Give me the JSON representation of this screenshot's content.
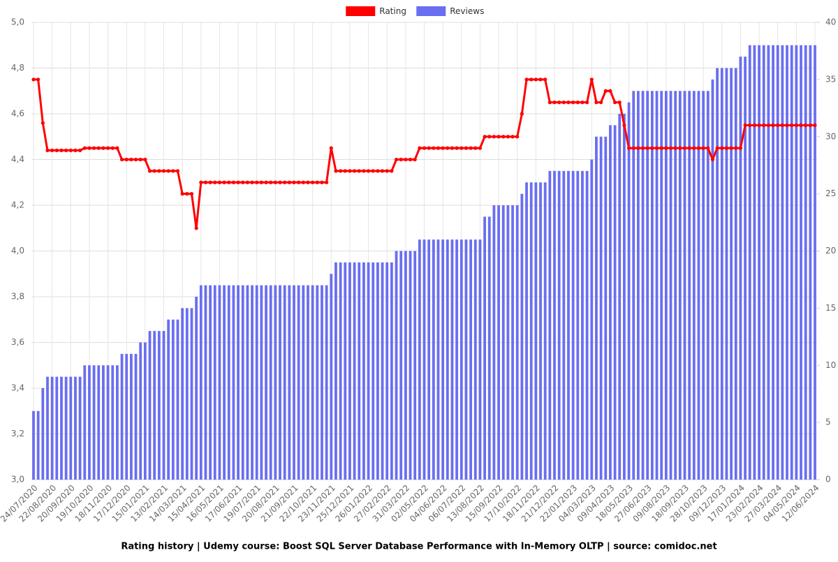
{
  "chart_data": {
    "type": "bar",
    "title": "Rating history | Udemy course: Boost SQL Server Database Performance with In-Memory OLTP | source: comidoc.net",
    "categories": [
      "24/07/2020",
      null,
      null,
      null,
      "22/08/2020",
      null,
      null,
      null,
      "20/09/2020",
      null,
      null,
      null,
      "19/10/2020",
      null,
      null,
      null,
      "18/11/2020",
      null,
      null,
      null,
      "17/12/2020",
      null,
      null,
      null,
      "15/01/2021",
      null,
      null,
      null,
      "13/02/2021",
      null,
      null,
      null,
      "14/03/2021",
      null,
      null,
      null,
      "15/04/2021",
      null,
      null,
      null,
      "16/05/2021",
      null,
      null,
      null,
      "17/06/2021",
      null,
      null,
      null,
      "19/07/2021",
      null,
      null,
      null,
      "20/08/2021",
      null,
      null,
      null,
      "21/09/2021",
      null,
      null,
      null,
      "22/10/2021",
      null,
      null,
      null,
      "23/11/2021",
      null,
      null,
      null,
      "25/12/2021",
      null,
      null,
      null,
      "26/01/2022",
      null,
      null,
      null,
      "27/02/2022",
      null,
      null,
      null,
      "31/03/2022",
      null,
      null,
      null,
      "02/05/2022",
      null,
      null,
      null,
      "04/06/2022",
      null,
      null,
      null,
      "06/07/2022",
      null,
      null,
      null,
      "13/08/2022",
      null,
      null,
      null,
      "15/09/2022",
      null,
      null,
      null,
      "17/10/2022",
      null,
      null,
      null,
      "18/11/2022",
      null,
      null,
      null,
      "21/12/2022",
      null,
      null,
      null,
      "22/01/2023",
      null,
      null,
      null,
      "04/03/2023",
      null,
      null,
      null,
      "09/04/2023",
      null,
      null,
      null,
      "18/05/2023",
      null,
      null,
      null,
      "27/06/2023",
      null,
      null,
      null,
      "09/08/2023",
      null,
      null,
      null,
      "18/09/2023",
      null,
      null,
      null,
      "28/10/2023",
      null,
      null,
      null,
      "09/12/2023",
      null,
      null,
      null,
      "17/01/2024",
      null,
      null,
      null,
      "23/02/2024",
      null,
      null,
      null,
      "27/03/2024",
      null,
      null,
      null,
      "04/05/2024",
      null,
      null,
      null,
      "12/06/2024"
    ],
    "series": [
      {
        "name": "Rating",
        "type": "line",
        "axis": "y",
        "color": "#ff0000",
        "values": [
          4.75,
          4.75,
          4.56,
          4.44,
          4.44,
          4.44,
          4.44,
          4.44,
          4.44,
          4.44,
          4.44,
          4.45,
          4.45,
          4.45,
          4.45,
          4.45,
          4.45,
          4.45,
          4.45,
          4.4,
          4.4,
          4.4,
          4.4,
          4.4,
          4.4,
          4.35,
          4.35,
          4.35,
          4.35,
          4.35,
          4.35,
          4.35,
          4.25,
          4.25,
          4.25,
          4.1,
          4.3,
          4.3,
          4.3,
          4.3,
          4.3,
          4.3,
          4.3,
          4.3,
          4.3,
          4.3,
          4.3,
          4.3,
          4.3,
          4.3,
          4.3,
          4.3,
          4.3,
          4.3,
          4.3,
          4.3,
          4.3,
          4.3,
          4.3,
          4.3,
          4.3,
          4.3,
          4.3,
          4.3,
          4.45,
          4.35,
          4.35,
          4.35,
          4.35,
          4.35,
          4.35,
          4.35,
          4.35,
          4.35,
          4.35,
          4.35,
          4.35,
          4.35,
          4.4,
          4.4,
          4.4,
          4.4,
          4.4,
          4.45,
          4.45,
          4.45,
          4.45,
          4.45,
          4.45,
          4.45,
          4.45,
          4.45,
          4.45,
          4.45,
          4.45,
          4.45,
          4.45,
          4.5,
          4.5,
          4.5,
          4.5,
          4.5,
          4.5,
          4.5,
          4.5,
          4.6,
          4.75,
          4.75,
          4.75,
          4.75,
          4.75,
          4.65,
          4.65,
          4.65,
          4.65,
          4.65,
          4.65,
          4.65,
          4.65,
          4.65,
          4.75,
          4.65,
          4.65,
          4.7,
          4.7,
          4.65,
          4.65,
          4.55,
          4.45,
          4.45,
          4.45,
          4.45,
          4.45,
          4.45,
          4.45,
          4.45,
          4.45,
          4.45,
          4.45,
          4.45,
          4.45,
          4.45,
          4.45,
          4.45,
          4.45,
          4.45,
          4.4,
          4.45,
          4.45,
          4.45,
          4.45,
          4.45,
          4.45,
          4.55,
          4.55,
          4.55,
          4.55,
          4.55,
          4.55,
          4.55,
          4.55,
          4.55,
          4.55,
          4.55,
          4.55,
          4.55,
          4.55,
          4.55,
          4.55
        ]
      },
      {
        "name": "Reviews",
        "type": "bar",
        "axis": "y2",
        "color": "#6a6ef0",
        "values": [
          6,
          6,
          8,
          9,
          9,
          9,
          9,
          9,
          9,
          9,
          9,
          10,
          10,
          10,
          10,
          10,
          10,
          10,
          10,
          11,
          11,
          11,
          11,
          12,
          12,
          13,
          13,
          13,
          13,
          14,
          14,
          14,
          15,
          15,
          15,
          16,
          17,
          17,
          17,
          17,
          17,
          17,
          17,
          17,
          17,
          17,
          17,
          17,
          17,
          17,
          17,
          17,
          17,
          17,
          17,
          17,
          17,
          17,
          17,
          17,
          17,
          17,
          17,
          17,
          18,
          19,
          19,
          19,
          19,
          19,
          19,
          19,
          19,
          19,
          19,
          19,
          19,
          19,
          20,
          20,
          20,
          20,
          20,
          21,
          21,
          21,
          21,
          21,
          21,
          21,
          21,
          21,
          21,
          21,
          21,
          21,
          21,
          23,
          23,
          24,
          24,
          24,
          24,
          24,
          24,
          25,
          26,
          26,
          26,
          26,
          26,
          27,
          27,
          27,
          27,
          27,
          27,
          27,
          27,
          27,
          28,
          30,
          30,
          30,
          31,
          31,
          32,
          32,
          33,
          34,
          34,
          34,
          34,
          34,
          34,
          34,
          34,
          34,
          34,
          34,
          34,
          34,
          34,
          34,
          34,
          34,
          35,
          36,
          36,
          36,
          36,
          36,
          37,
          37,
          38,
          38,
          38,
          38,
          38,
          38,
          38,
          38,
          38,
          38,
          38,
          38,
          38,
          38,
          38
        ]
      }
    ],
    "ylim": [
      3,
      5
    ],
    "yticks": [
      {
        "value": 3,
        "label": "3,0"
      },
      {
        "value": 3.2,
        "label": "3,2"
      },
      {
        "value": 3.4,
        "label": "3,4"
      },
      {
        "value": 3.6,
        "label": "3,6"
      },
      {
        "value": 3.8,
        "label": "3,8"
      },
      {
        "value": 4,
        "label": "4,0"
      },
      {
        "value": 4.2,
        "label": "4,2"
      },
      {
        "value": 4.4,
        "label": "4,4"
      },
      {
        "value": 4.6,
        "label": "4,6"
      },
      {
        "value": 4.8,
        "label": "4,8"
      },
      {
        "value": 5,
        "label": "5,0"
      }
    ],
    "y2lim": [
      0,
      40
    ],
    "y2ticks": [
      0,
      5,
      10,
      15,
      20,
      25,
      30,
      35,
      40
    ],
    "grid": true,
    "legend": "top"
  }
}
